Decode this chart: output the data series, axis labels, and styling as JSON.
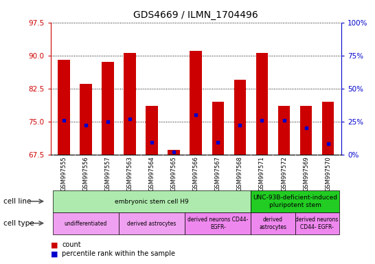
{
  "title": "GDS4669 / ILMN_1704496",
  "samples": [
    "GSM997555",
    "GSM997556",
    "GSM997557",
    "GSM997563",
    "GSM997564",
    "GSM997565",
    "GSM997566",
    "GSM997567",
    "GSM997568",
    "GSM997571",
    "GSM997572",
    "GSM997569",
    "GSM997570"
  ],
  "count_values": [
    89.0,
    83.5,
    88.5,
    90.5,
    78.5,
    68.5,
    91.0,
    79.5,
    84.5,
    90.5,
    78.5,
    78.5,
    79.5
  ],
  "percentile_values": [
    26,
    22,
    25,
    27,
    9,
    2,
    30,
    9,
    22,
    26,
    26,
    20,
    8
  ],
  "ylim_left": [
    67.5,
    97.5
  ],
  "ylim_right": [
    0,
    100
  ],
  "yticks_left": [
    67.5,
    75,
    82.5,
    90,
    97.5
  ],
  "yticks_right": [
    0,
    25,
    50,
    75,
    100
  ],
  "cell_line_groups": [
    {
      "label": "embryonic stem cell H9",
      "start": 0,
      "end": 9,
      "color": "#aeeaae"
    },
    {
      "label": "UNC-93B-deficient-induced\npluripotent stem",
      "start": 9,
      "end": 13,
      "color": "#22cc22"
    }
  ],
  "cell_type_groups": [
    {
      "label": "undifferentiated",
      "start": 0,
      "end": 3,
      "color": "#f0a0f0"
    },
    {
      "label": "derived astrocytes",
      "start": 3,
      "end": 6,
      "color": "#f0a0f0"
    },
    {
      "label": "derived neurons CD44-\nEGFR-",
      "start": 6,
      "end": 9,
      "color": "#ee88ee"
    },
    {
      "label": "derived\nastrocytes",
      "start": 9,
      "end": 11,
      "color": "#ee88ee"
    },
    {
      "label": "derived neurons\nCD44- EGFR-",
      "start": 11,
      "end": 13,
      "color": "#ee88ee"
    }
  ],
  "bar_color": "#cc0000",
  "percentile_color": "#0000cc",
  "left_axis_color": "#cc0000",
  "right_axis_color": "#0000cc",
  "plot_bg": "#ffffff",
  "xtick_bg": "#d0d0d0"
}
